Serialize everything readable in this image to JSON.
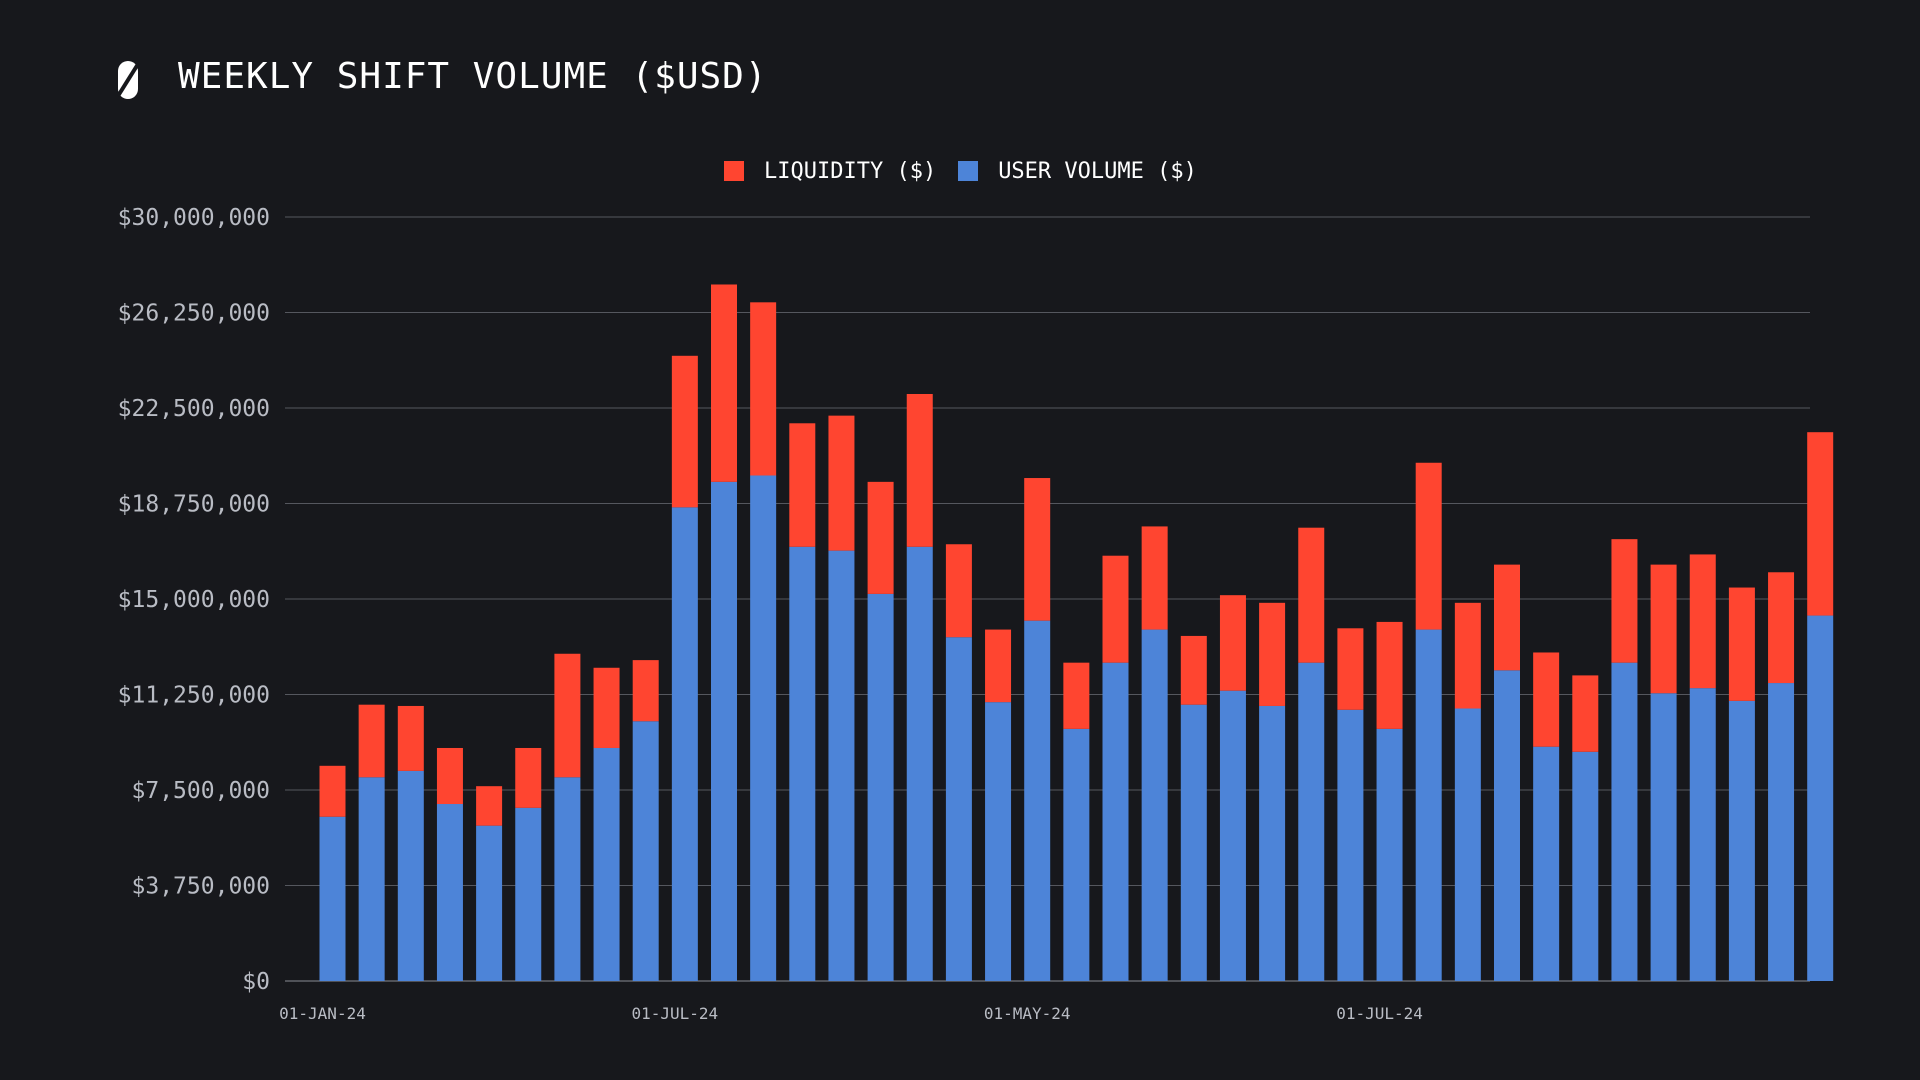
{
  "title": "WEEKLY SHIFT VOLUME ($USD)",
  "logo_icon": "sideshift-logo-icon",
  "colors": {
    "background": "#17181c",
    "liquidity": "#ff4530",
    "user_volume": "#4d84d8",
    "grid": "#55575e",
    "axis_text": "#b9bcc4"
  },
  "chart_data": {
    "type": "bar",
    "stacked": true,
    "title": "WEEKLY SHIFT VOLUME ($USD)",
    "legend_position": "top-center",
    "grid": true,
    "ylim": [
      0,
      30000000
    ],
    "yticks": [
      0,
      3750000,
      7500000,
      11250000,
      15000000,
      18750000,
      22500000,
      26250000,
      30000000
    ],
    "ytick_labels": [
      "$0",
      "$3,750,000",
      "$7,500,000",
      "$11,250,000",
      "$15,000,000",
      "$18,750,000",
      "$22,500,000",
      "$26,250,000",
      "$30,000,000"
    ],
    "xtick_labels": [
      {
        "index": 0,
        "label": "01-JAN-24"
      },
      {
        "index": 9,
        "label": "01-JUL-24"
      },
      {
        "index": 18,
        "label": "01-MAY-24"
      },
      {
        "index": 27,
        "label": "01-JUL-24"
      }
    ],
    "series": [
      {
        "name": "USER VOLUME ($)",
        "values": [
          6450000,
          8000000,
          8250000,
          6950000,
          6100000,
          6800000,
          8000000,
          9150000,
          10200000,
          18600000,
          19600000,
          19850000,
          17050000,
          16900000,
          15200000,
          17050000,
          13500000,
          10950000,
          14150000,
          9900000,
          12500000,
          13800000,
          10850000,
          11400000,
          10800000,
          12500000,
          10650000,
          9900000,
          13800000,
          10700000,
          12200000,
          9200000,
          9000000,
          12500000,
          11300000,
          11500000,
          11000000,
          11700000,
          14350000
        ]
      },
      {
        "name": "LIQUIDITY ($)",
        "values": [
          2000000,
          2850000,
          2550000,
          2200000,
          1550000,
          2350000,
          4850000,
          3150000,
          2400000,
          5950000,
          7750000,
          6800000,
          4850000,
          5300000,
          4400000,
          6000000,
          3650000,
          2850000,
          5600000,
          2600000,
          4200000,
          4050000,
          2700000,
          3750000,
          4050000,
          5300000,
          3200000,
          4200000,
          6550000,
          4150000,
          4150000,
          3700000,
          3000000,
          4850000,
          5050000,
          5250000,
          4450000,
          4350000,
          7200000
        ]
      }
    ]
  }
}
